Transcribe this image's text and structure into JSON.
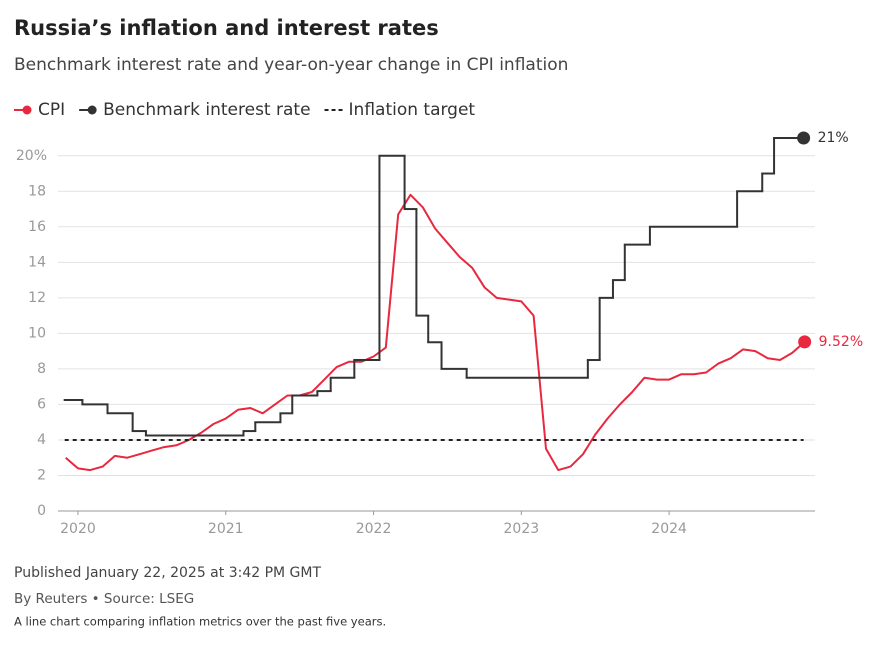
{
  "chart_data": {
    "type": "line",
    "title": "Russia’s inflation and interest rates",
    "subtitle": "Benchmark interest rate and year-on-year change in CPI inflation",
    "xlim": [
      2019.865,
      2024.987
    ],
    "xticks": [
      2020,
      2021,
      2022,
      2023,
      2024
    ],
    "ylim": [
      0,
      21
    ],
    "yticks": [
      0,
      2,
      4,
      6,
      8,
      10,
      12,
      14,
      16,
      18,
      {
        "value": 20,
        "label": "20%"
      }
    ],
    "grid": true,
    "legend": "top-left",
    "series": [
      {
        "name": "CPI",
        "color": "#e8283f",
        "style": "solid",
        "end_dot": true,
        "end_label": "9.52%",
        "x": [
          2019.917,
          2020.0,
          2020.083,
          2020.167,
          2020.25,
          2020.333,
          2020.417,
          2020.5,
          2020.583,
          2020.667,
          2020.75,
          2020.833,
          2020.917,
          2021.0,
          2021.083,
          2021.167,
          2021.25,
          2021.333,
          2021.417,
          2021.5,
          2021.583,
          2021.667,
          2021.75,
          2021.833,
          2021.917,
          2022.0,
          2022.083,
          2022.167,
          2022.25,
          2022.333,
          2022.417,
          2022.5,
          2022.583,
          2022.667,
          2022.75,
          2022.833,
          2022.917,
          2023.0,
          2023.083,
          2023.167,
          2023.25,
          2023.333,
          2023.417,
          2023.5,
          2023.583,
          2023.667,
          2023.75,
          2023.833,
          2023.917,
          2024.0,
          2024.083,
          2024.167,
          2024.25,
          2024.333,
          2024.417,
          2024.5,
          2024.583,
          2024.667,
          2024.75,
          2024.833,
          2024.917
        ],
        "values": [
          3.0,
          2.4,
          2.3,
          2.5,
          3.1,
          3.0,
          3.2,
          3.4,
          3.6,
          3.7,
          4.0,
          4.4,
          4.9,
          5.2,
          5.7,
          5.8,
          5.5,
          6.0,
          6.5,
          6.5,
          6.7,
          7.4,
          8.1,
          8.4,
          8.4,
          8.7,
          9.2,
          16.7,
          17.8,
          17.1,
          15.9,
          15.1,
          14.3,
          13.7,
          12.6,
          12.0,
          11.9,
          11.8,
          11.0,
          3.5,
          2.3,
          2.5,
          3.2,
          4.3,
          5.2,
          6.0,
          6.7,
          7.5,
          7.4,
          7.4,
          7.7,
          7.7,
          7.8,
          8.3,
          8.6,
          9.1,
          9.0,
          8.6,
          8.5,
          8.9,
          9.52
        ]
      },
      {
        "name": "Benchmark interest rate",
        "color": "#333333",
        "style": "step",
        "end_dot": true,
        "end_label": "21%",
        "x": [
          2019.91,
          2020.03,
          2020.2,
          2020.37,
          2020.46,
          2021.12,
          2021.2,
          2021.37,
          2021.45,
          2021.62,
          2021.71,
          2021.87,
          2022.04,
          2022.21,
          2022.29,
          2022.37,
          2022.46,
          2022.63,
          2023.45,
          2023.53,
          2023.62,
          2023.7,
          2023.87,
          2024.46,
          2024.63,
          2024.71,
          2024.91
        ],
        "values": [
          6.25,
          6.0,
          5.5,
          4.5,
          4.25,
          4.5,
          5.0,
          5.5,
          6.5,
          6.75,
          7.5,
          8.5,
          20,
          17,
          11,
          9.5,
          8.0,
          7.5,
          8.5,
          12,
          13,
          15,
          16,
          18,
          19,
          21,
          21
        ]
      },
      {
        "name": "Inflation target",
        "color": "#222222",
        "style": "dashed",
        "x": [
          2019.91,
          2024.91
        ],
        "values": [
          4,
          4
        ]
      }
    ]
  },
  "footer": {
    "published": "Published January 22, 2025 at 3:42 PM GMT",
    "byline": "By Reuters • Source: LSEG",
    "description": "A line chart comparing inflation metrics over the past five years."
  }
}
